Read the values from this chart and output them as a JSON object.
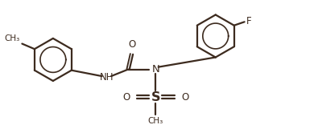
{
  "bg_color": "#ffffff",
  "line_color": "#3d2b1f",
  "line_width": 1.6,
  "font_size": 8.5,
  "fig_width": 3.9,
  "fig_height": 1.71,
  "dpi": 100,
  "xlim": [
    0,
    10.5
  ],
  "ylim": [
    0,
    4.5
  ]
}
